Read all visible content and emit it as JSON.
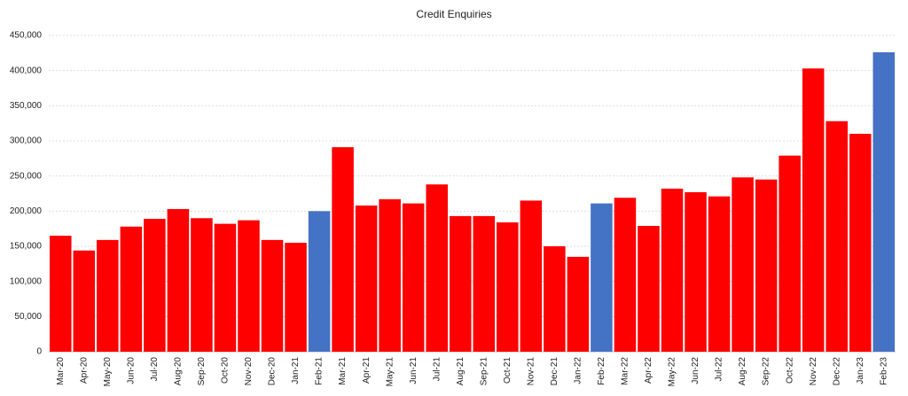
{
  "chart_data": {
    "type": "bar",
    "title": "Credit Enquiries",
    "categories": [
      "Mar-20",
      "Apr-20",
      "May-20",
      "Jun-20",
      "Jul-20",
      "Aug-20",
      "Sep-20",
      "Oct-20",
      "Nov-20",
      "Dec-20",
      "Jan-21",
      "Feb-21",
      "Mar-21",
      "Apr-21",
      "May-21",
      "Jun-21",
      "Jul-21",
      "Aug-21",
      "Sep-21",
      "Oct-21",
      "Nov-21",
      "Dec-21",
      "Jan-22",
      "Feb-22",
      "Mar-22",
      "Apr-22",
      "May-22",
      "Jun-22",
      "Jul-22",
      "Aug-22",
      "Sep-22",
      "Oct-22",
      "Nov-22",
      "Dec-22",
      "Jan-23",
      "Feb-23"
    ],
    "values": [
      165000,
      144000,
      159000,
      178000,
      189000,
      203000,
      190000,
      182000,
      187000,
      159000,
      155000,
      200000,
      291000,
      208000,
      217000,
      211000,
      238000,
      193000,
      193000,
      184000,
      215000,
      150000,
      135000,
      211000,
      219000,
      179000,
      232000,
      227000,
      221000,
      248000,
      245000,
      279000,
      403000,
      328000,
      310000,
      426000
    ],
    "colors": [
      "#ff0000",
      "#ff0000",
      "#ff0000",
      "#ff0000",
      "#ff0000",
      "#ff0000",
      "#ff0000",
      "#ff0000",
      "#ff0000",
      "#ff0000",
      "#ff0000",
      "#4472c4",
      "#ff0000",
      "#ff0000",
      "#ff0000",
      "#ff0000",
      "#ff0000",
      "#ff0000",
      "#ff0000",
      "#ff0000",
      "#ff0000",
      "#ff0000",
      "#ff0000",
      "#4472c4",
      "#ff0000",
      "#ff0000",
      "#ff0000",
      "#ff0000",
      "#ff0000",
      "#ff0000",
      "#ff0000",
      "#ff0000",
      "#ff0000",
      "#ff0000",
      "#ff0000",
      "#4472c4"
    ],
    "ylim": [
      0,
      450000
    ],
    "yticks": [
      0,
      {
        "value": 50000,
        "label": "50,000"
      },
      {
        "value": 100000,
        "label": "100,000"
      },
      {
        "value": 150000,
        "label": "150,000"
      },
      {
        "value": 200000,
        "label": "200,000"
      },
      {
        "value": 250000,
        "label": "250,000"
      },
      {
        "value": 300000,
        "label": "300,000"
      },
      {
        "value": 350000,
        "label": "350,000"
      },
      {
        "value": 400000,
        "label": "400,000"
      },
      {
        "value": 450000,
        "label": "450,000"
      }
    ],
    "grid": true
  }
}
